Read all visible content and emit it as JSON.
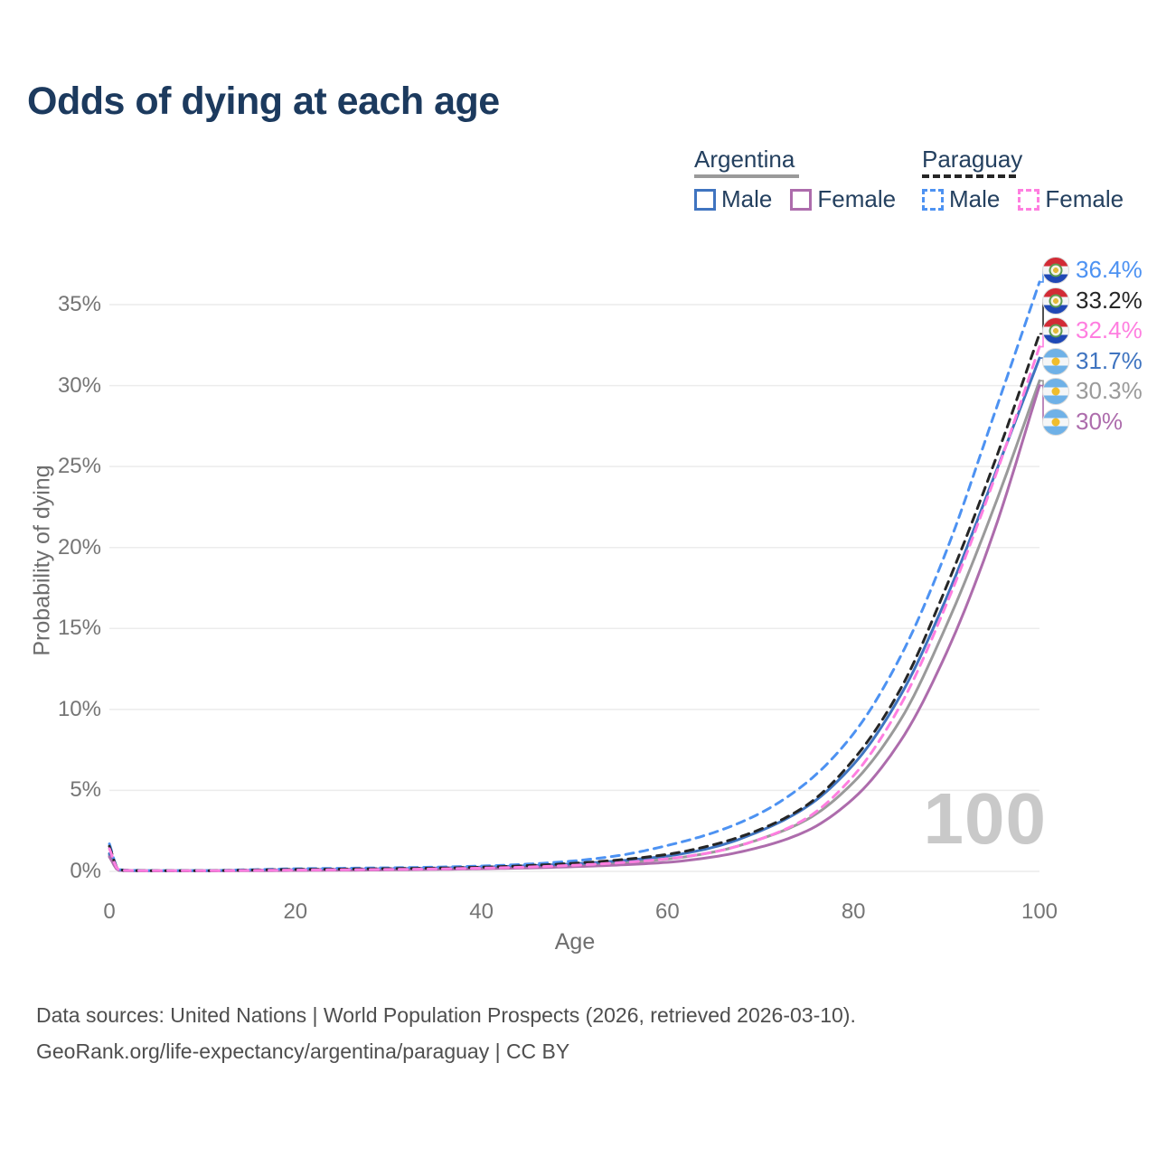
{
  "title": "Odds of dying at each age",
  "legend": {
    "argentina": {
      "name": "Argentina",
      "male": "Male",
      "female": "Female"
    },
    "paraguay": {
      "name": "Paraguay",
      "male": "Male",
      "female": "Female"
    }
  },
  "footer": {
    "line1": "Data sources: United Nations | World Population Prospects (2026, retrieved 2026-03-10).",
    "line2": "GeoRank.org/life-expectancy/argentina/paraguay | CC BY"
  },
  "chart_data": {
    "type": "line",
    "title": "Odds of dying at each age",
    "xlabel": "Age",
    "ylabel": "Probability of dying",
    "xlim": [
      0,
      100
    ],
    "ylim": [
      0,
      37
    ],
    "grid": "horizontal",
    "legend_position": "top-right",
    "hover_age": "100",
    "x_tick_labels": [
      "0",
      "20",
      "40",
      "60",
      "80",
      "100"
    ],
    "x_ticks": [
      0,
      20,
      40,
      60,
      80,
      100
    ],
    "y_tick_labels": [
      "0%",
      "5%",
      "10%",
      "15%",
      "20%",
      "25%",
      "30%",
      "35%"
    ],
    "y_ticks": [
      0,
      5,
      10,
      15,
      20,
      25,
      30,
      35
    ],
    "ages": [
      0,
      1,
      2,
      5,
      10,
      15,
      20,
      25,
      30,
      35,
      40,
      45,
      50,
      55,
      60,
      65,
      70,
      75,
      80,
      85,
      90,
      95,
      100
    ],
    "series": [
      {
        "id": "argentina-all",
        "name": "Argentina (both sexes)",
        "country": "argentina",
        "sex": "all",
        "style": "solid",
        "color": "#9a9a9a",
        "end_label": "30.3%",
        "end_value": 30.3,
        "values": [
          1.0,
          0.07,
          0.045,
          0.03,
          0.035,
          0.055,
          0.08,
          0.1,
          0.13,
          0.16,
          0.21,
          0.28,
          0.38,
          0.53,
          0.76,
          1.2,
          2.0,
          3.2,
          5.5,
          9.3,
          15.2,
          22.3,
          30.3
        ]
      },
      {
        "id": "argentina-male",
        "name": "Argentina Male",
        "country": "argentina",
        "sex": "male",
        "style": "solid",
        "color": "#3f74c0",
        "end_label": "31.7%",
        "end_value": 31.7,
        "values": [
          1.1,
          0.08,
          0.05,
          0.035,
          0.04,
          0.07,
          0.1,
          0.13,
          0.16,
          0.2,
          0.26,
          0.35,
          0.47,
          0.66,
          0.95,
          1.5,
          2.5,
          4.0,
          6.6,
          10.8,
          16.9,
          24.2,
          31.7
        ]
      },
      {
        "id": "argentina-female",
        "name": "Argentina Female",
        "country": "argentina",
        "sex": "female",
        "style": "solid",
        "color": "#ad6cac",
        "end_label": "30%",
        "end_value": 30.0,
        "values": [
          0.9,
          0.065,
          0.04,
          0.028,
          0.03,
          0.04,
          0.055,
          0.07,
          0.09,
          0.12,
          0.16,
          0.21,
          0.29,
          0.4,
          0.56,
          0.9,
          1.5,
          2.5,
          4.5,
          8.0,
          13.5,
          20.8,
          30.0
        ]
      },
      {
        "id": "paraguay-male",
        "name": "Paraguay Male",
        "country": "paraguay",
        "sex": "male",
        "style": "dashed",
        "color": "#4d92f2",
        "end_label": "36.4%",
        "end_value": 36.4,
        "values": [
          1.7,
          0.12,
          0.07,
          0.05,
          0.05,
          0.1,
          0.16,
          0.19,
          0.22,
          0.26,
          0.33,
          0.45,
          0.65,
          1.0,
          1.6,
          2.4,
          3.6,
          5.5,
          8.5,
          13.2,
          19.8,
          28.0,
          36.4
        ]
      },
      {
        "id": "paraguay-all",
        "name": "Paraguay (both sexes)",
        "country": "paraguay",
        "sex": "all",
        "style": "dashed",
        "color": "#262626",
        "end_label": "33.2%",
        "end_value": 33.2,
        "values": [
          1.55,
          0.11,
          0.06,
          0.045,
          0.045,
          0.08,
          0.12,
          0.14,
          0.17,
          0.2,
          0.26,
          0.36,
          0.5,
          0.72,
          1.05,
          1.65,
          2.6,
          4.1,
          6.9,
          11.2,
          17.6,
          25.0,
          33.2
        ]
      },
      {
        "id": "paraguay-female",
        "name": "Paraguay Female",
        "country": "paraguay",
        "sex": "female",
        "style": "dashed",
        "color": "#ff7ee0",
        "end_label": "32.4%",
        "end_value": 32.4,
        "values": [
          1.4,
          0.1,
          0.055,
          0.04,
          0.04,
          0.06,
          0.08,
          0.1,
          0.12,
          0.15,
          0.2,
          0.27,
          0.38,
          0.54,
          0.78,
          1.2,
          2.0,
          3.3,
          5.9,
          10.2,
          16.5,
          24.0,
          32.4
        ]
      }
    ]
  }
}
